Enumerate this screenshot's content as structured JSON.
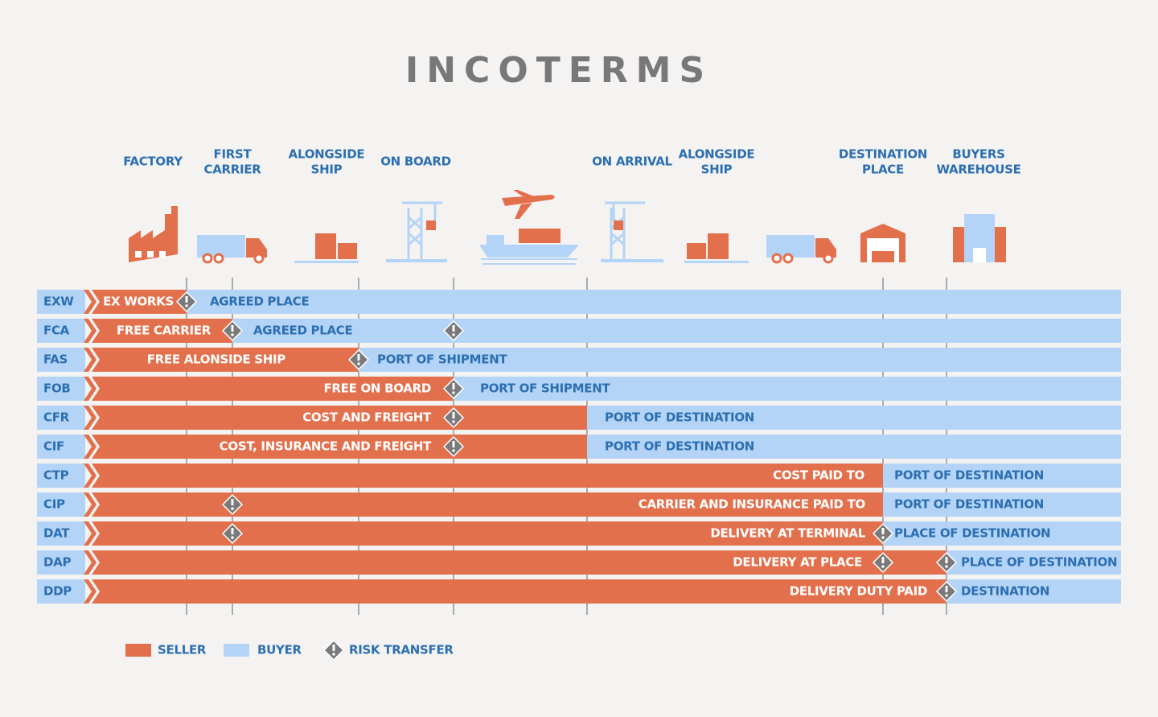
{
  "header": {
    "title": "INCOTERMS"
  },
  "stages": [
    [
      "FACTORY"
    ],
    [
      "FIRST",
      "CARRIER"
    ],
    [
      "ALONGSIDE",
      "SHIP"
    ],
    [
      "ON BOARD"
    ],
    [
      "ON ARRIVAL"
    ],
    [
      "ALONGSIDE",
      "SHIP"
    ],
    [
      "DESTINATION",
      "PLACE"
    ],
    [
      "BUYERS",
      "WAREHOUSE"
    ]
  ],
  "rows": [
    {
      "code": "EXW",
      "seller": "EX WORKS",
      "buyer": "AGREED PLACE"
    },
    {
      "code": "FCA",
      "seller": "FREE CARRIER",
      "buyer": "AGREED PLACE"
    },
    {
      "code": "FAS",
      "seller": "FREE ALONSIDE SHIP",
      "buyer": "PORT OF SHIPMENT"
    },
    {
      "code": "FOB",
      "seller": "FREE ON BOARD",
      "buyer": "PORT OF SHIPMENT"
    },
    {
      "code": "CFR",
      "seller": "COST AND FREIGHT",
      "buyer": "PORT OF DESTINATION"
    },
    {
      "code": "CIF",
      "seller": "COST, INSURANCE AND FREIGHT",
      "buyer": "PORT OF DESTINATION"
    },
    {
      "code": "CTP",
      "seller": "COST PAID TO",
      "buyer": "PORT OF DESTINATION"
    },
    {
      "code": "CIP",
      "seller": "CARRIER AND INSURANCE PAID TO",
      "buyer": "PORT OF DESTINATION"
    },
    {
      "code": "DAT",
      "seller": "DELIVERY AT TERMINAL",
      "buyer": "PLACE OF DESTINATION"
    },
    {
      "code": "DAP",
      "seller": "DELIVERY AT PLACE",
      "buyer": "PLACE OF DESTINATION"
    },
    {
      "code": "DDP",
      "seller": "DELIVERY DUTY PAID",
      "buyer": "DESTINATION"
    }
  ],
  "legend": {
    "seller": "SELLER",
    "buyer": "BUYER",
    "risk": "RISK TRANSFER"
  }
}
